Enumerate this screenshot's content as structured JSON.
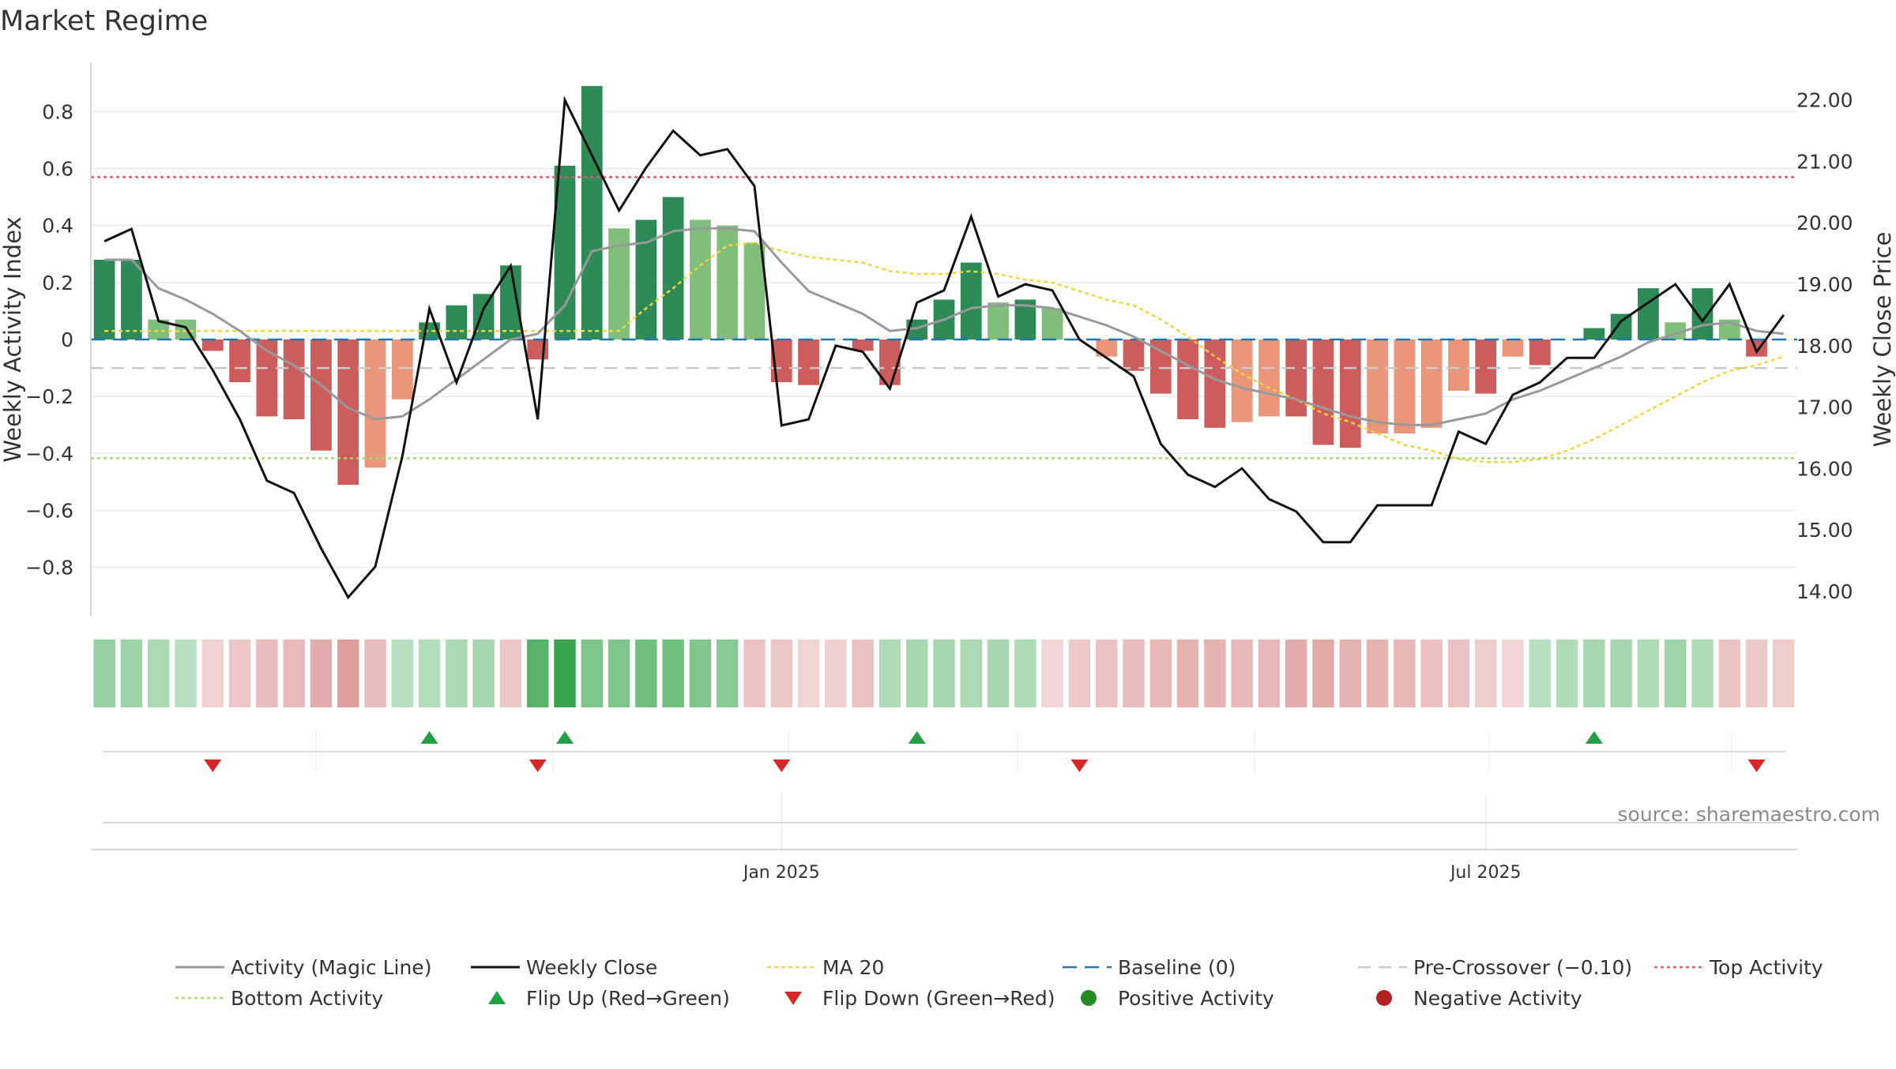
{
  "page": {
    "title": "Market Regime",
    "source": "source: sharemaestro.com"
  },
  "colors": {
    "strong_green": "#2e8b57",
    "light_green": "#7fbf7b",
    "strong_red": "#cd5c5c",
    "light_red": "#e9967a",
    "close_line": "#111111",
    "magic_line": "#999999",
    "ma20": "#f2d43d",
    "baseline": "#1f77b4",
    "pre_crossover": "#c8c8c8",
    "top_activity": "#e05a6e",
    "bottom_activity": "#a8d86e",
    "flip_up": "#22a045",
    "flip_down": "#d62728",
    "positive_activity": "#228b22",
    "negative_activity": "#b22222"
  },
  "chart_data": {
    "type": "bar",
    "title": "Market Regime",
    "ylabel": "Weekly Activity Index",
    "y2label": "Weekly Close Price",
    "ylim": [
      -0.97,
      0.97
    ],
    "y2lim": [
      13.6,
      22.6
    ],
    "yticks": [
      {
        "v": 0.8,
        "label": "0.8"
      },
      {
        "v": 0.6,
        "label": "0.6"
      },
      {
        "v": 0.4,
        "label": "0.4"
      },
      {
        "v": 0.2,
        "label": "0.2"
      },
      {
        "v": 0,
        "label": "0"
      },
      {
        "v": -0.2,
        "label": "−0.2"
      },
      {
        "v": -0.4,
        "label": "−0.4"
      },
      {
        "v": -0.6,
        "label": "−0.6"
      },
      {
        "v": -0.8,
        "label": "−0.8"
      }
    ],
    "y2ticks": [
      {
        "v": 22,
        "label": "22.00"
      },
      {
        "v": 21,
        "label": "21.00"
      },
      {
        "v": 20,
        "label": "20.00"
      },
      {
        "v": 19,
        "label": "19.00"
      },
      {
        "v": 18,
        "label": "18.00"
      },
      {
        "v": 17,
        "label": "17.00"
      },
      {
        "v": 16,
        "label": "16.00"
      },
      {
        "v": 15,
        "label": "15.00"
      },
      {
        "v": 14,
        "label": "14.00"
      }
    ],
    "x_ticks": [
      {
        "week": 25,
        "label": "Jan 2025"
      },
      {
        "week": 51,
        "label": "Jul 2025"
      }
    ],
    "weeks": 63,
    "levels": {
      "baseline": 0,
      "pre_crossover": -0.1,
      "top_activity": 0.57,
      "bottom_activity": -0.417
    },
    "activity": [
      0.28,
      0.28,
      0.07,
      0.07,
      -0.04,
      -0.15,
      -0.27,
      -0.28,
      -0.39,
      -0.51,
      -0.45,
      -0.21,
      0.06,
      0.12,
      0.16,
      0.26,
      -0.07,
      0.61,
      0.89,
      0.39,
      0.42,
      0.5,
      0.42,
      0.4,
      0.34,
      -0.15,
      -0.16,
      0.0,
      -0.04,
      -0.16,
      0.07,
      0.14,
      0.27,
      0.13,
      0.14,
      0.11,
      0.0,
      -0.06,
      -0.11,
      -0.19,
      -0.28,
      -0.31,
      -0.29,
      -0.27,
      -0.27,
      -0.37,
      -0.38,
      -0.33,
      -0.33,
      -0.31,
      -0.18,
      -0.19,
      -0.06,
      -0.09,
      0.0,
      0.04,
      0.09,
      0.18,
      0.06,
      0.18,
      0.07,
      -0.06,
      0.0
    ],
    "bar_strength": [
      "strong",
      "strong",
      "light",
      "light",
      "strong",
      "strong",
      "strong",
      "strong",
      "strong",
      "strong",
      "light",
      "light",
      "strong",
      "strong",
      "strong",
      "strong",
      "strong",
      "strong",
      "strong",
      "light",
      "strong",
      "strong",
      "light",
      "light",
      "light",
      "strong",
      "strong",
      "strong",
      "strong",
      "strong",
      "strong",
      "strong",
      "strong",
      "light",
      "strong",
      "light",
      "strong",
      "light",
      "strong",
      "strong",
      "strong",
      "strong",
      "light",
      "light",
      "strong",
      "strong",
      "strong",
      "light",
      "light",
      "light",
      "light",
      "strong",
      "light",
      "strong",
      "strong",
      "strong",
      "strong",
      "strong",
      "light",
      "strong",
      "light",
      "strong",
      "strong"
    ],
    "magic_line": [
      0.28,
      0.28,
      0.18,
      0.14,
      0.09,
      0.03,
      -0.04,
      -0.09,
      -0.16,
      -0.24,
      -0.28,
      -0.27,
      -0.21,
      -0.14,
      -0.07,
      0.0,
      0.02,
      0.12,
      0.31,
      0.33,
      0.34,
      0.38,
      0.39,
      0.39,
      0.38,
      0.27,
      0.17,
      0.13,
      0.09,
      0.03,
      0.04,
      0.07,
      0.11,
      0.12,
      0.12,
      0.11,
      0.08,
      0.05,
      0.01,
      -0.04,
      -0.09,
      -0.14,
      -0.17,
      -0.19,
      -0.21,
      -0.24,
      -0.27,
      -0.29,
      -0.3,
      -0.3,
      -0.28,
      -0.26,
      -0.21,
      -0.18,
      -0.14,
      -0.1,
      -0.06,
      -0.01,
      0.02,
      0.05,
      0.06,
      0.03,
      0.02
    ],
    "ma20": [
      0.03,
      0.03,
      0.03,
      0.03,
      0.03,
      0.03,
      0.03,
      0.03,
      0.03,
      0.03,
      0.03,
      0.03,
      0.03,
      0.03,
      0.03,
      0.03,
      0.03,
      0.03,
      0.03,
      0.03,
      0.11,
      0.18,
      0.26,
      0.33,
      0.34,
      0.31,
      0.29,
      0.28,
      0.27,
      0.24,
      0.23,
      0.23,
      0.24,
      0.23,
      0.21,
      0.2,
      0.17,
      0.14,
      0.12,
      0.07,
      0.01,
      -0.06,
      -0.12,
      -0.17,
      -0.21,
      -0.26,
      -0.29,
      -0.33,
      -0.37,
      -0.39,
      -0.42,
      -0.43,
      -0.43,
      -0.42,
      -0.39,
      -0.35,
      -0.3,
      -0.25,
      -0.2,
      -0.15,
      -0.11,
      -0.09,
      -0.06
    ],
    "weekly_close": [
      19.7,
      19.9,
      18.4,
      18.3,
      17.6,
      16.8,
      15.8,
      15.6,
      14.7,
      13.9,
      14.4,
      16.2,
      18.6,
      17.4,
      18.6,
      19.3,
      16.8,
      22.0,
      21.1,
      20.2,
      20.9,
      21.5,
      21.1,
      21.2,
      20.6,
      16.7,
      16.8,
      18.0,
      17.9,
      17.3,
      18.7,
      18.9,
      20.1,
      18.8,
      19.0,
      18.9,
      18.1,
      17.8,
      17.5,
      16.4,
      15.9,
      15.7,
      16.0,
      15.5,
      15.3,
      14.8,
      14.8,
      15.4,
      15.4,
      15.4,
      16.6,
      16.4,
      17.2,
      17.4,
      17.8,
      17.8,
      18.4,
      18.7,
      19.0,
      18.4,
      19.0,
      17.9,
      18.5
    ],
    "heat_strip": [
      0.38,
      0.35,
      0.28,
      0.22,
      -0.15,
      -0.22,
      -0.28,
      -0.3,
      -0.38,
      -0.46,
      -0.28,
      0.22,
      0.25,
      0.28,
      0.3,
      -0.22,
      0.68,
      0.85,
      0.5,
      0.5,
      0.56,
      0.56,
      0.48,
      0.44,
      -0.24,
      -0.22,
      -0.14,
      -0.16,
      -0.26,
      0.26,
      0.3,
      0.3,
      0.28,
      0.3,
      0.26,
      -0.14,
      -0.2,
      -0.24,
      -0.28,
      -0.32,
      -0.34,
      -0.34,
      -0.32,
      -0.32,
      -0.38,
      -0.4,
      -0.34,
      -0.34,
      -0.32,
      -0.26,
      -0.24,
      -0.18,
      -0.14,
      0.22,
      0.26,
      0.3,
      0.3,
      0.26,
      0.34,
      0.26,
      -0.24,
      -0.2,
      -0.18
    ],
    "flip_up_weeks": [
      12,
      17,
      30,
      55
    ],
    "flip_down_weeks": [
      4,
      16,
      25,
      36,
      61
    ],
    "legend": [
      {
        "key": "magic",
        "label": "Activity (Magic Line)"
      },
      {
        "key": "close",
        "label": "Weekly Close"
      },
      {
        "key": "ma20",
        "label": "MA 20"
      },
      {
        "key": "baseline",
        "label": "Baseline (0)"
      },
      {
        "key": "pre",
        "label": "Pre-Crossover (−0.10)"
      },
      {
        "key": "top",
        "label": "Top Activity"
      },
      {
        "key": "bottom",
        "label": "Bottom Activity"
      },
      {
        "key": "flip_up",
        "label": "Flip Up (Red→Green)"
      },
      {
        "key": "flip_down",
        "label": "Flip Down (Green→Red)"
      },
      {
        "key": "pos",
        "label": "Positive Activity"
      },
      {
        "key": "neg",
        "label": "Negative Activity"
      }
    ]
  }
}
